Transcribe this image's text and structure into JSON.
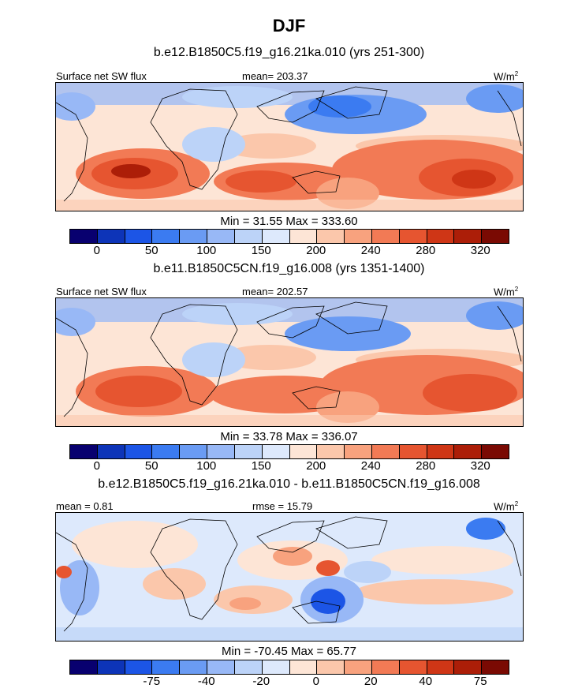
{
  "title": "DJF",
  "palette": [
    "#08006f",
    "#0d34b8",
    "#1c55e6",
    "#3b7bf1",
    "#6a9bf3",
    "#98b8f6",
    "#bcd3f8",
    "#dde9fc",
    "#fde5d6",
    "#fbc7ab",
    "#f8a27e",
    "#f27a55",
    "#e65530",
    "#cf3616",
    "#ac1e08",
    "#7a0a03"
  ],
  "panels": [
    {
      "name": "model-a",
      "title": "b.e12.B1850C5.f19_g16.21ka.010 (yrs 251-300)",
      "left_label": "Surface net SW flux",
      "center_label": "mean= 203.37",
      "units_base": "W/m",
      "units_exp": "2",
      "stats": "Min =  31.55 Max = 333.60",
      "ticks": [
        "0",
        "50",
        "100",
        "150",
        "200",
        "240",
        "280",
        "320"
      ]
    },
    {
      "name": "model-b",
      "title": "b.e11.B1850C5CN.f19_g16.008 (yrs 1351-1400)",
      "left_label": "Surface net SW flux",
      "center_label": "mean= 202.57",
      "units_base": "W/m",
      "units_exp": "2",
      "stats": "Min =  33.78 Max = 336.07",
      "ticks": [
        "0",
        "50",
        "100",
        "150",
        "200",
        "240",
        "280",
        "320"
      ]
    },
    {
      "name": "difference",
      "title": "b.e12.B1850C5.f19_g16.21ka.010 - b.e11.B1850C5CN.f19_g16.008",
      "left_label": "mean =   0.81",
      "center_label": "rmse =  15.79",
      "units_base": "W/m",
      "units_exp": "2",
      "stats": "Min = -70.45 Max =  65.77",
      "ticks": [
        "-75",
        "-40",
        "-20",
        "0",
        "20",
        "40",
        "75"
      ]
    }
  ],
  "chart_data": [
    {
      "type": "heatmap",
      "title": "b.e12.B1850C5.f19_g16.21ka.010 (yrs 251-300)",
      "variable": "Surface net SW flux",
      "units": "W/m2",
      "season": "DJF",
      "mean": 203.37,
      "min": 31.55,
      "max": 333.6,
      "contour_levels": [
        0,
        25,
        50,
        75,
        100,
        125,
        150,
        175,
        200,
        220,
        240,
        260,
        280,
        300,
        320
      ],
      "colorbar_tick_labels": [
        0,
        50,
        100,
        150,
        200,
        240,
        280,
        320
      ]
    },
    {
      "type": "heatmap",
      "title": "b.e11.B1850C5CN.f19_g16.008 (yrs 1351-1400)",
      "variable": "Surface net SW flux",
      "units": "W/m2",
      "season": "DJF",
      "mean": 202.57,
      "min": 33.78,
      "max": 336.07,
      "contour_levels": [
        0,
        25,
        50,
        75,
        100,
        125,
        150,
        175,
        200,
        220,
        240,
        260,
        280,
        300,
        320
      ],
      "colorbar_tick_labels": [
        0,
        50,
        100,
        150,
        200,
        240,
        280,
        320
      ]
    },
    {
      "type": "heatmap",
      "title": "b.e12.B1850C5.f19_g16.21ka.010 - b.e11.B1850C5CN.f19_g16.008",
      "variable": "Surface net SW flux difference",
      "units": "W/m2",
      "season": "DJF",
      "mean": 0.81,
      "rmse": 15.79,
      "min": -70.45,
      "max": 65.77,
      "contour_levels": [
        -100,
        -75,
        -60,
        -40,
        -30,
        -20,
        -10,
        0,
        10,
        20,
        30,
        40,
        60,
        75,
        100
      ],
      "colorbar_tick_labels": [
        -75,
        -40,
        -20,
        0,
        20,
        40,
        75
      ]
    }
  ]
}
